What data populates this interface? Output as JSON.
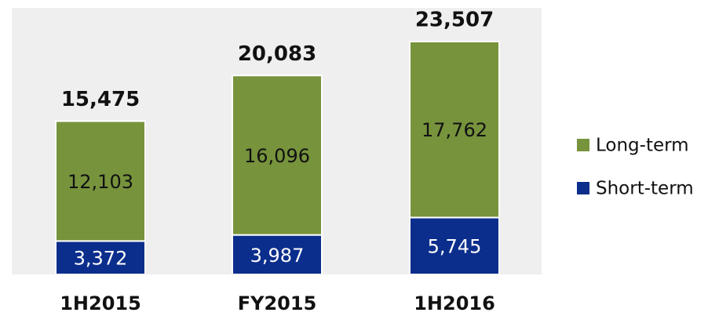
{
  "chart_data": {
    "type": "stacked_bar",
    "categories": [
      "1H2015",
      "FY2015",
      "1H2016"
    ],
    "series": [
      {
        "name": "Short-term",
        "color": "#0b2e8c",
        "values": [
          3372,
          3987,
          5745
        ],
        "value_labels": [
          "3,372",
          "3,987",
          "5,745"
        ]
      },
      {
        "name": "Long-term",
        "color": "#77933c",
        "values": [
          12103,
          16096,
          17762
        ],
        "value_labels": [
          "12,103",
          "16,096",
          "17,762"
        ]
      }
    ],
    "totals": [
      15475,
      20083,
      23507
    ],
    "total_labels": [
      "15,475",
      "20,083",
      "23,507"
    ],
    "legend": "right"
  }
}
